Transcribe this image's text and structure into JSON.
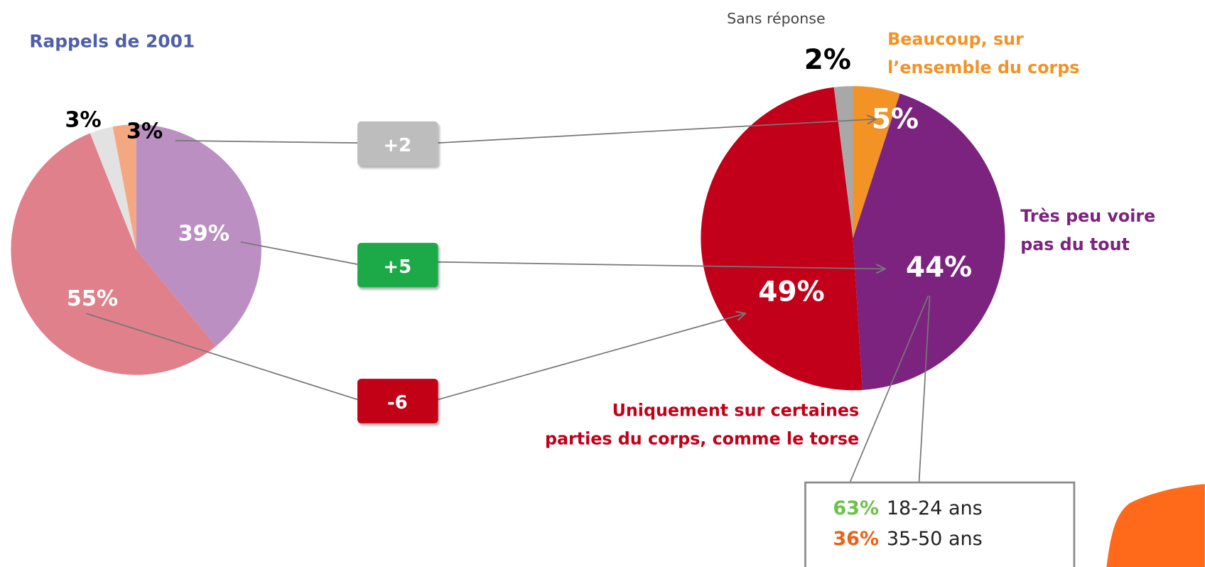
{
  "chart_data": [
    {
      "type": "pie",
      "title": "Rappels de 2001",
      "values": [
        39,
        55,
        3,
        3
      ],
      "value_labels": [
        "39%",
        "55%",
        "3%",
        "3%"
      ],
      "colors": [
        "#bb8fc2",
        "#e0808a",
        "#e2e2e2",
        "#f4a882"
      ]
    },
    {
      "type": "pie",
      "categories": [
        "Beaucoup, sur l’ensemble du corps",
        "Très peu voire pas du tout",
        "Uniquement sur certaines parties du corps, comme le torse",
        "Sans réponse"
      ],
      "values": [
        5,
        44,
        49,
        2
      ],
      "value_labels": [
        "5%",
        "44%",
        "49%",
        "2%"
      ],
      "colors": [
        "#f39325",
        "#7b237f",
        "#c20019",
        "#a8a8a8"
      ]
    }
  ],
  "deltas": [
    {
      "value": 2,
      "label": "+2"
    },
    {
      "value": 5,
      "label": "+5"
    },
    {
      "value": -6,
      "label": "-6"
    }
  ],
  "breakdown": [
    {
      "value": 63,
      "label": "63%",
      "group": "18-24 ans"
    },
    {
      "value": 36,
      "label": "36%",
      "group": "35-50 ans"
    }
  ]
}
